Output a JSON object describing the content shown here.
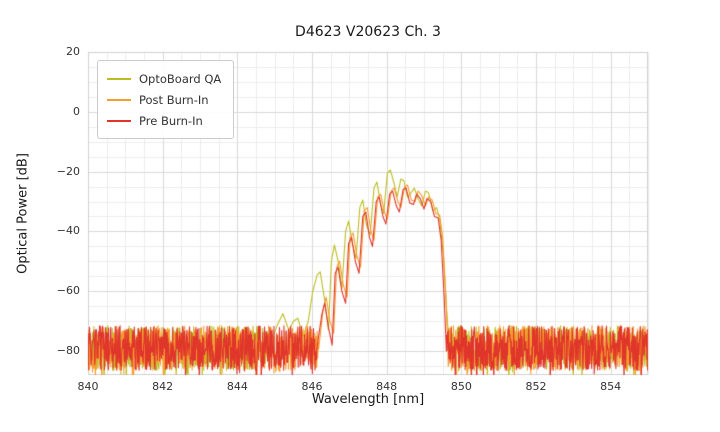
{
  "chart_data": {
    "type": "line",
    "title": "D4623 V20623 Ch. 3",
    "xlabel": "Wavelength [nm]",
    "ylabel": "Optical Power [dB]",
    "xlim": [
      840,
      855
    ],
    "ylim": [
      -88,
      20
    ],
    "x_ticks": [
      "840",
      "842",
      "844",
      "846",
      "848",
      "850",
      "852",
      "854"
    ],
    "x_tick_values": [
      840,
      842,
      844,
      846,
      848,
      850,
      852,
      854
    ],
    "y_ticks": [
      "20",
      "0",
      "−20",
      "−40",
      "−60",
      "−80"
    ],
    "y_tick_values": [
      20,
      0,
      -20,
      -40,
      -60,
      -80
    ],
    "grid": {
      "major_color": "#d9d9d9",
      "minor_color": "#ececec",
      "x_minor_step": 0.5,
      "y_minor_step": 5,
      "spine_color": "#d0d0d0"
    },
    "legend_position": "upper left",
    "noise": {
      "floor_max": -71.5,
      "floor_min": -86.5,
      "deep_spike_chance": 0.015,
      "deep_spike_db": -96,
      "step_nm": 0.01
    },
    "series": [
      {
        "name": "OptoBoard QA",
        "color": "#bcbd22",
        "seed": 11,
        "signal": [
          [
            844.9,
            -77
          ],
          [
            845.08,
            -71
          ],
          [
            845.22,
            -67.5
          ],
          [
            845.38,
            -73
          ],
          [
            845.5,
            -70
          ],
          [
            845.62,
            -69
          ],
          [
            845.76,
            -75
          ],
          [
            845.9,
            -70
          ],
          [
            846.02,
            -60
          ],
          [
            846.14,
            -54.5
          ],
          [
            846.22,
            -53.5
          ],
          [
            846.34,
            -63
          ],
          [
            846.44,
            -73
          ],
          [
            846.52,
            -50
          ],
          [
            846.6,
            -44.5
          ],
          [
            846.7,
            -50
          ],
          [
            846.8,
            -59
          ],
          [
            846.9,
            -40
          ],
          [
            846.98,
            -36.5
          ],
          [
            847.08,
            -44
          ],
          [
            847.18,
            -49
          ],
          [
            847.28,
            -32
          ],
          [
            847.36,
            -29.5
          ],
          [
            847.46,
            -38
          ],
          [
            847.56,
            -41
          ],
          [
            847.66,
            -25.5
          ],
          [
            847.74,
            -23.5
          ],
          [
            847.84,
            -31
          ],
          [
            847.92,
            -34
          ],
          [
            848.02,
            -20.5
          ],
          [
            848.1,
            -19.5
          ],
          [
            848.2,
            -24
          ],
          [
            848.28,
            -28.5
          ],
          [
            848.38,
            -22.5
          ],
          [
            848.46,
            -23
          ],
          [
            848.56,
            -28.5
          ],
          [
            848.66,
            -27
          ],
          [
            848.74,
            -25.5
          ],
          [
            848.84,
            -29
          ],
          [
            848.94,
            -31.5
          ],
          [
            849.04,
            -26.5
          ],
          [
            849.12,
            -27
          ],
          [
            849.24,
            -33
          ],
          [
            849.34,
            -32
          ],
          [
            849.42,
            -36
          ],
          [
            849.52,
            -48
          ],
          [
            849.6,
            -65
          ],
          [
            849.66,
            -76
          ]
        ]
      },
      {
        "name": "Post Burn-In",
        "color": "#f89c2e",
        "seed": 22,
        "signal": [
          [
            846.18,
            -79
          ],
          [
            846.3,
            -66
          ],
          [
            846.38,
            -62
          ],
          [
            846.48,
            -70
          ],
          [
            846.58,
            -74
          ],
          [
            846.66,
            -52
          ],
          [
            846.74,
            -50
          ],
          [
            846.84,
            -58
          ],
          [
            846.94,
            -62
          ],
          [
            847.02,
            -42
          ],
          [
            847.1,
            -40.5
          ],
          [
            847.2,
            -48
          ],
          [
            847.3,
            -52
          ],
          [
            847.4,
            -33
          ],
          [
            847.48,
            -32
          ],
          [
            847.58,
            -40
          ],
          [
            847.66,
            -43
          ],
          [
            847.76,
            -28.5
          ],
          [
            847.84,
            -27.5
          ],
          [
            847.94,
            -33.5
          ],
          [
            848.02,
            -36
          ],
          [
            848.12,
            -26.5
          ],
          [
            848.2,
            -25.5
          ],
          [
            848.3,
            -30
          ],
          [
            848.38,
            -32
          ],
          [
            848.48,
            -25
          ],
          [
            848.56,
            -24.5
          ],
          [
            848.66,
            -29.5
          ],
          [
            848.76,
            -30
          ],
          [
            848.84,
            -26.5
          ],
          [
            848.94,
            -28
          ],
          [
            849.04,
            -31.5
          ],
          [
            849.12,
            -28.5
          ],
          [
            849.22,
            -29.5
          ],
          [
            849.32,
            -34
          ],
          [
            849.42,
            -34.5
          ],
          [
            849.5,
            -42
          ],
          [
            849.58,
            -60
          ],
          [
            849.64,
            -78
          ]
        ]
      },
      {
        "name": "Pre Burn-In",
        "color": "#e0352b",
        "seed": 33,
        "signal": [
          [
            846.12,
            -80
          ],
          [
            846.26,
            -68
          ],
          [
            846.34,
            -64
          ],
          [
            846.44,
            -72
          ],
          [
            846.54,
            -78
          ],
          [
            846.62,
            -54
          ],
          [
            846.7,
            -52
          ],
          [
            846.8,
            -60
          ],
          [
            846.9,
            -64
          ],
          [
            846.98,
            -44
          ],
          [
            847.06,
            -42
          ],
          [
            847.16,
            -50
          ],
          [
            847.26,
            -54
          ],
          [
            847.36,
            -35
          ],
          [
            847.44,
            -33.5
          ],
          [
            847.54,
            -42
          ],
          [
            847.62,
            -45
          ],
          [
            847.72,
            -30
          ],
          [
            847.8,
            -28.5
          ],
          [
            847.9,
            -35
          ],
          [
            847.98,
            -37.5
          ],
          [
            848.08,
            -27.5
          ],
          [
            848.16,
            -26.5
          ],
          [
            848.26,
            -31.5
          ],
          [
            848.34,
            -33.5
          ],
          [
            848.44,
            -26
          ],
          [
            848.52,
            -25.5
          ],
          [
            848.62,
            -30.5
          ],
          [
            848.72,
            -31
          ],
          [
            848.8,
            -27.5
          ],
          [
            848.9,
            -29
          ],
          [
            849.0,
            -32.5
          ],
          [
            849.08,
            -29
          ],
          [
            849.18,
            -30
          ],
          [
            849.28,
            -35
          ],
          [
            849.38,
            -35.5
          ],
          [
            849.46,
            -43
          ],
          [
            849.54,
            -62
          ],
          [
            849.6,
            -80
          ]
        ]
      }
    ]
  }
}
